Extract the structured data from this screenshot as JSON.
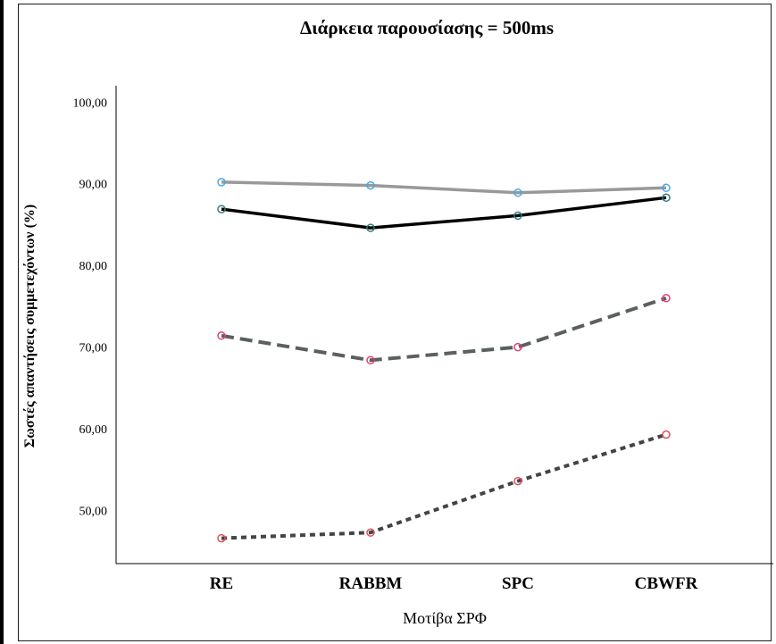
{
  "chart_data": {
    "type": "line",
    "title": "Διάρκεια παρουσίασης = 500ms",
    "xlabel": "Μοτίβα ΣΡΦ",
    "ylabel": "Σωστές απαντήσεις συμμετεχόντων (%)",
    "categories": [
      "RE",
      "RABBM",
      "SPC",
      "CBWFR"
    ],
    "yticks": [
      "50,00",
      "60,00",
      "70,00",
      "80,00",
      "90,00",
      "100,00"
    ],
    "ytick_values": [
      50,
      60,
      70,
      80,
      90,
      100
    ],
    "ylim": [
      43.5,
      102
    ],
    "grid": false,
    "series": [
      {
        "values": [
          90.2,
          89.8,
          88.9,
          89.5
        ],
        "color": "#999999",
        "marker": "#4aa8e0",
        "style": "solid"
      },
      {
        "values": [
          86.9,
          84.6,
          86.1,
          88.3
        ],
        "color": "#000000",
        "marker": "#2f7f7f",
        "style": "solid"
      },
      {
        "values": [
          71.4,
          68.4,
          70.0,
          76.0
        ],
        "color": "#5a605e",
        "marker": "#e04070",
        "style": "dashed"
      },
      {
        "values": [
          46.6,
          47.3,
          53.6,
          59.3
        ],
        "color": "#444444",
        "marker": "#e05060",
        "style": "dotted"
      }
    ]
  }
}
